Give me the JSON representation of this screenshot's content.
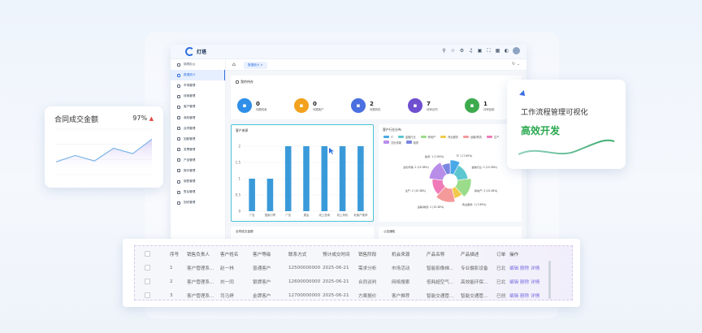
{
  "app": {
    "brand": "灯塔",
    "tab_active": "数据统计",
    "sidebar": [
      {
        "label": "协同办公",
        "active": false
      },
      {
        "label": "数据统计",
        "active": true
      },
      {
        "label": "市场管理",
        "active": false
      },
      {
        "label": "线索管理",
        "active": false
      },
      {
        "label": "客户管理",
        "active": false
      },
      {
        "label": "商机管理",
        "active": false
      },
      {
        "label": "合同管理",
        "active": false
      },
      {
        "label": "回款管理",
        "active": false
      },
      {
        "label": "发票管理",
        "active": false
      },
      {
        "label": "产品管理",
        "active": false
      },
      {
        "label": "报价管理",
        "active": false
      },
      {
        "label": "销售管理",
        "active": false
      },
      {
        "label": "售后管理",
        "active": false
      },
      {
        "label": "回访管理",
        "active": false
      }
    ],
    "todo": {
      "title": "我的待办",
      "items": [
        {
          "value": "0",
          "label": "待跟线索",
          "color": "#2f8fe8",
          "icon": "list-icon"
        },
        {
          "value": "0",
          "label": "待跟客户",
          "color": "#f2a21e",
          "icon": "user-icon"
        },
        {
          "value": "2",
          "label": "待跟商机",
          "color": "#4a6fe0",
          "icon": "edit-icon"
        },
        {
          "value": "7",
          "label": "待审合同",
          "color": "#6f4fd0",
          "icon": "group-icon"
        },
        {
          "value": "1",
          "label": "待审回款",
          "color": "#3dab4d",
          "icon": "check-icon"
        }
      ]
    },
    "bar_panel_title": "客户来源",
    "pie_panel_title": "客户行业分布",
    "bottom_left_title": "合同成交金额",
    "bottom_right_title": "公告通知"
  },
  "chart_data": [
    {
      "type": "bar",
      "title": "客户来源",
      "categories": [
        "广告",
        "搜索引擎",
        "广告",
        "展会",
        "线上咨询",
        "线上商机",
        "老客户推荐"
      ],
      "values": [
        1,
        1,
        2,
        2,
        2,
        2,
        2
      ],
      "ylim": [
        0,
        2
      ],
      "yticks": [
        "0",
        "0.5",
        "1",
        "1.5",
        "2"
      ],
      "color": "#3a9ad9"
    },
    {
      "type": "pie",
      "title": "客户行业分布",
      "legend": [
        "IT",
        "金融行业",
        "房地产",
        "商业服务",
        "运输/物流",
        "生产",
        "文化传媒",
        "政府"
      ],
      "slices": [
        {
          "label": "IT: 1 (7.69%)",
          "value": 1,
          "color": "#4aa8e8"
        },
        {
          "label": "金融行业: 2 (15.38%)",
          "value": 2,
          "color": "#5cc7d0"
        },
        {
          "label": "房地产: 2 (15.38%)",
          "value": 2,
          "color": "#9bdc8a"
        },
        {
          "label": "商业服务: 1 (7.69%)",
          "value": 1,
          "color": "#f2c94c"
        },
        {
          "label": "运输/物流: 2 (15.38%)",
          "value": 2,
          "color": "#f49a9a"
        },
        {
          "label": "生产: 2 (15.38%)",
          "value": 2,
          "color": "#f07ab8"
        },
        {
          "label": "文化传媒: 2 (15.38%)",
          "value": 2,
          "color": "#b88de8"
        },
        {
          "label": "政府: 1 (7.69%)",
          "value": 1,
          "color": "#7a86e0"
        }
      ]
    },
    {
      "type": "line",
      "title": "合同成交金额",
      "x": [
        1,
        2,
        3,
        4,
        5,
        6
      ],
      "values": [
        0.28,
        0.42,
        0.3,
        0.58,
        0.46,
        0.78
      ]
    }
  ],
  "left_card": {
    "title": "合同成交金额",
    "percent": "97%",
    "trend": "▲"
  },
  "right_card": {
    "title": "工作流程管理可视化",
    "subtitle": "高效开发"
  },
  "table": {
    "columns": [
      "序号",
      "销售负责人",
      "客户姓名",
      "客户等级",
      "联系方式",
      "预计成交时间",
      "销售阶段",
      "机会来源",
      "产品名称",
      "产品描述",
      "订单",
      "操作"
    ],
    "rows": [
      {
        "no": "1",
        "owner": "客户管理系...",
        "name": "赵一林",
        "level": "普通客户",
        "phone": "12500000000",
        "date": "2025-06-21",
        "stage": "需求分析",
        "source": "市场活动",
        "product": "智能影像梯...",
        "desc": "专业摄影设备",
        "order": "已北",
        "ops": [
          "编辑",
          "删除",
          "详情"
        ]
      },
      {
        "no": "2",
        "owner": "客户管理系...",
        "name": "刘一同",
        "level": "银牌客户",
        "phone": "12600000000",
        "date": "2025-06-21",
        "stage": "合同谈判",
        "source": "网络搜索",
        "product": "低耗超空气...",
        "desc": "高效能环保...",
        "order": "已北",
        "ops": [
          "编辑",
          "删除",
          "详情"
        ]
      },
      {
        "no": "3",
        "owner": "客户管理系...",
        "name": "司马婷",
        "level": "金牌客户",
        "phone": "12700000000",
        "date": "2025-06-21",
        "stage": "方案报价",
        "source": "客户推荐",
        "product": "智能交通管...",
        "desc": "智能交通管...",
        "order": "已创",
        "ops": [
          "编辑",
          "删除",
          "详情"
        ]
      }
    ]
  }
}
